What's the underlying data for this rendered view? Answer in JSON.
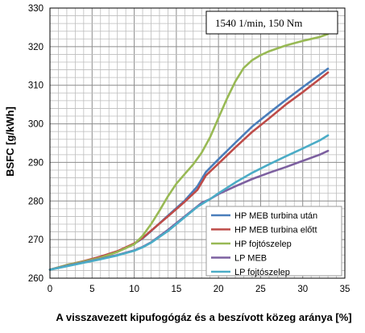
{
  "chart_data": {
    "type": "line",
    "title": "",
    "xlabel": "A visszavezett kipufogógáz és a beszívott közeg aránya [%]",
    "ylabel": "BSFC [g/kWh]",
    "xlim": [
      0,
      35
    ],
    "ylim": [
      260,
      330
    ],
    "x_ticks": [
      "0",
      "5",
      "10",
      "15",
      "20",
      "25",
      "30",
      "35"
    ],
    "y_ticks": [
      "260",
      "270",
      "280",
      "290",
      "300",
      "310",
      "320",
      "330"
    ],
    "grid": true,
    "minor_grid": true,
    "annotation": "1540 1/min, 150 Nm",
    "legend_position": "bottom-right",
    "series": [
      {
        "name": "HP MEB turbina után",
        "color": "#4a7ebb",
        "points": [
          [
            0,
            262.2
          ],
          [
            2,
            263.4
          ],
          [
            4,
            264.3
          ],
          [
            6,
            265.4
          ],
          [
            8,
            266.9
          ],
          [
            10,
            268.9
          ],
          [
            11,
            270.3
          ],
          [
            12,
            272.2
          ],
          [
            14,
            276.2
          ],
          [
            16,
            280.1
          ],
          [
            17.5,
            283.8
          ],
          [
            18.5,
            287.5
          ],
          [
            20,
            290.8
          ],
          [
            22,
            295.1
          ],
          [
            24,
            299.3
          ],
          [
            26,
            302.8
          ],
          [
            28,
            306.2
          ],
          [
            30,
            309.5
          ],
          [
            32,
            312.7
          ],
          [
            33,
            314.3
          ]
        ]
      },
      {
        "name": "HP MEB turbina előtt",
        "color": "#be4b48",
        "points": [
          [
            0,
            262.2
          ],
          [
            2,
            263.4
          ],
          [
            4,
            264.4
          ],
          [
            6,
            265.6
          ],
          [
            8,
            267.0
          ],
          [
            10,
            269.0
          ],
          [
            11,
            270.4
          ],
          [
            12,
            272.3
          ],
          [
            14,
            276.0
          ],
          [
            16,
            279.8
          ],
          [
            17.5,
            282.9
          ],
          [
            18.5,
            286.6
          ],
          [
            20,
            289.7
          ],
          [
            22,
            293.9
          ],
          [
            24,
            297.9
          ],
          [
            26,
            301.4
          ],
          [
            28,
            305.0
          ],
          [
            30,
            308.2
          ],
          [
            32,
            311.6
          ],
          [
            33,
            313.3
          ]
        ]
      },
      {
        "name": "HP fojtószelep",
        "color": "#98b954",
        "points": [
          [
            0,
            262.2
          ],
          [
            2,
            263.4
          ],
          [
            4,
            264.3
          ],
          [
            6,
            265.3
          ],
          [
            8,
            266.8
          ],
          [
            10,
            268.8
          ],
          [
            11,
            271.0
          ],
          [
            12,
            274.0
          ],
          [
            13,
            277.5
          ],
          [
            14,
            281.2
          ],
          [
            15,
            284.5
          ],
          [
            16,
            287.0
          ],
          [
            17,
            289.5
          ],
          [
            18,
            292.5
          ],
          [
            19,
            296.5
          ],
          [
            20,
            301.5
          ],
          [
            21,
            306.5
          ],
          [
            22,
            311.0
          ],
          [
            23,
            314.5
          ],
          [
            24,
            316.5
          ],
          [
            25,
            317.8
          ],
          [
            26,
            318.8
          ],
          [
            28,
            320.3
          ],
          [
            30,
            321.5
          ],
          [
            32,
            322.5
          ],
          [
            33,
            323.3
          ]
        ]
      },
      {
        "name": "LP MEB",
        "color": "#7d60a0",
        "points": [
          [
            0,
            262.2
          ],
          [
            2,
            263.2
          ],
          [
            4,
            264.1
          ],
          [
            6,
            265.0
          ],
          [
            8,
            266.0
          ],
          [
            10,
            267.2
          ],
          [
            11,
            268.1
          ],
          [
            12,
            269.3
          ],
          [
            14,
            272.5
          ],
          [
            16,
            276.0
          ],
          [
            18,
            279.5
          ],
          [
            19,
            280.5
          ],
          [
            20,
            281.8
          ],
          [
            22,
            283.8
          ],
          [
            24,
            285.7
          ],
          [
            26,
            287.3
          ],
          [
            28,
            288.8
          ],
          [
            30,
            290.4
          ],
          [
            32,
            292.0
          ],
          [
            33,
            293.0
          ]
        ]
      },
      {
        "name": "LP fojtószelep",
        "color": "#4bacc6",
        "points": [
          [
            0,
            262.2
          ],
          [
            2,
            263.1
          ],
          [
            4,
            264.0
          ],
          [
            6,
            264.9
          ],
          [
            8,
            265.9
          ],
          [
            10,
            267.1
          ],
          [
            11,
            268.0
          ],
          [
            12,
            269.2
          ],
          [
            14,
            272.2
          ],
          [
            16,
            275.8
          ],
          [
            17.5,
            278.5
          ],
          [
            19,
            280.5
          ],
          [
            20,
            282.0
          ],
          [
            22,
            284.8
          ],
          [
            24,
            287.3
          ],
          [
            26,
            289.5
          ],
          [
            28,
            291.6
          ],
          [
            30,
            293.6
          ],
          [
            32,
            295.7
          ],
          [
            33,
            297.0
          ]
        ]
      }
    ]
  }
}
